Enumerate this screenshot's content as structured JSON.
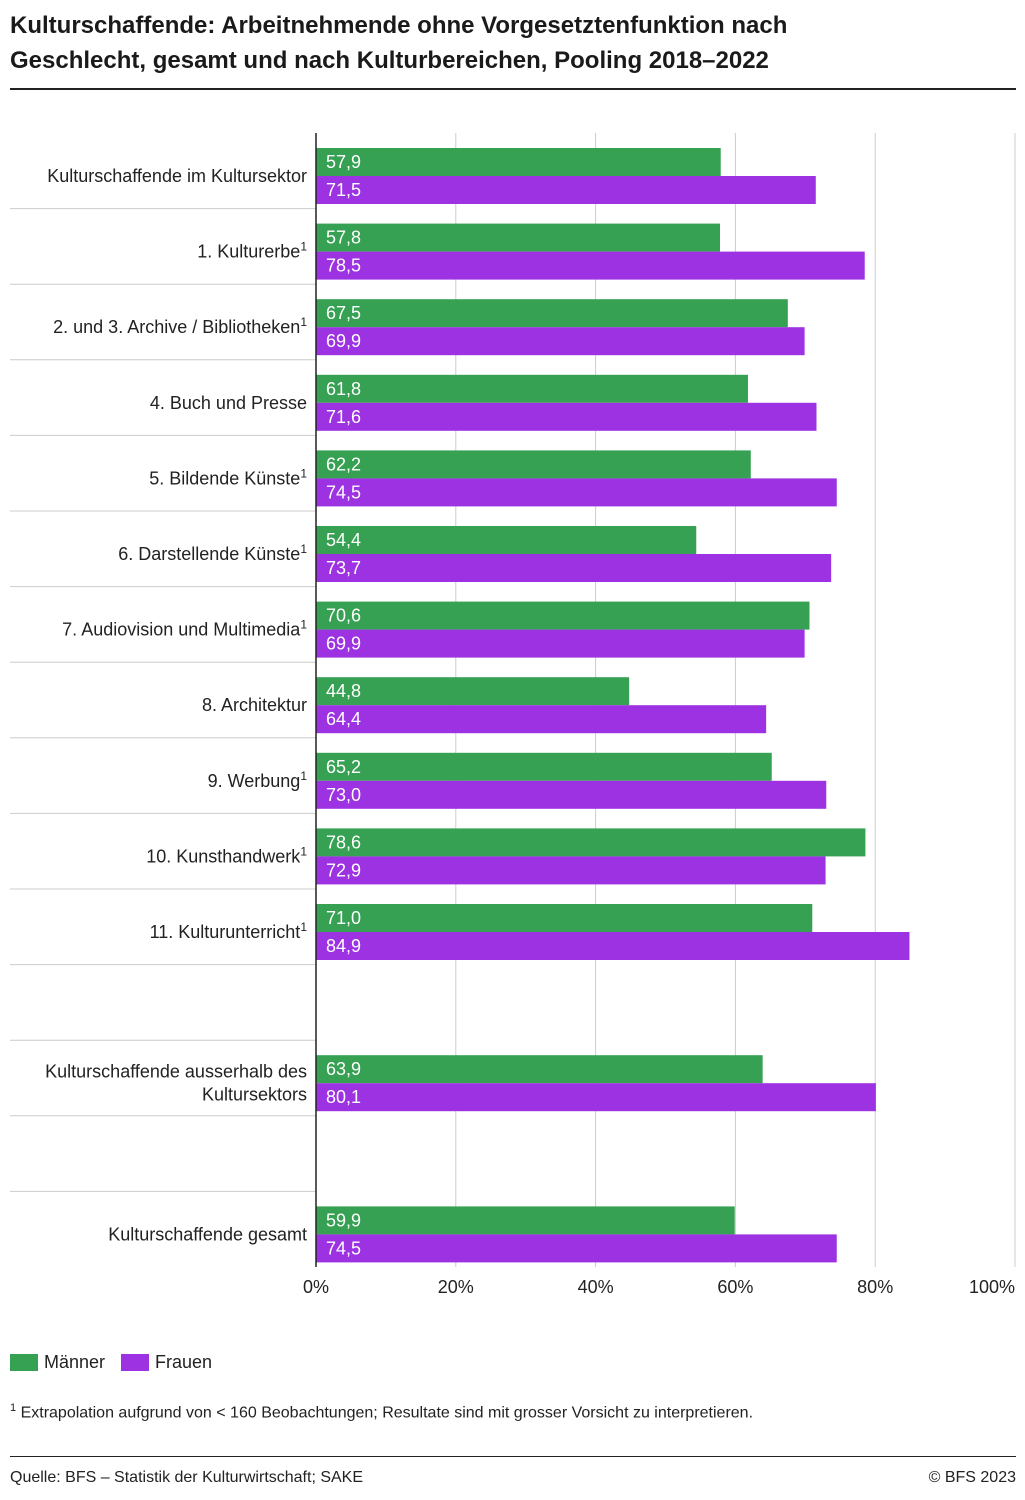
{
  "title_line1": "Kulturschaffende: Arbeitnehmende ohne Vorgesetztenfunktion nach",
  "title_line2": "Geschlecht, gesamt und nach Kulturbereichen, Pooling 2018–2022",
  "chart_data": {
    "type": "bar",
    "orientation": "horizontal",
    "xlim": [
      0,
      100
    ],
    "x_ticks": [
      "0%",
      "20%",
      "40%",
      "60%",
      "80%",
      "100%"
    ],
    "grid": true,
    "colors": {
      "maenner": "#36a152",
      "frauen": "#9c32e1"
    },
    "categories": [
      {
        "label": "Kulturschaffende im Kultursektor",
        "sup": "",
        "maenner": 57.9,
        "frauen": 71.5,
        "m_label": "57,9",
        "f_label": "71,5"
      },
      {
        "label": "1. Kulturerbe",
        "sup": "1",
        "maenner": 57.8,
        "frauen": 78.5,
        "m_label": "57,8",
        "f_label": "78,5"
      },
      {
        "label": "2. und 3. Archive / Bibliotheken",
        "sup": "1",
        "maenner": 67.5,
        "frauen": 69.9,
        "m_label": "67,5",
        "f_label": "69,9"
      },
      {
        "label": "4. Buch und Presse",
        "sup": "",
        "maenner": 61.8,
        "frauen": 71.6,
        "m_label": "61,8",
        "f_label": "71,6"
      },
      {
        "label": "5. Bildende Künste",
        "sup": "1",
        "maenner": 62.2,
        "frauen": 74.5,
        "m_label": "62,2",
        "f_label": "74,5"
      },
      {
        "label": "6. Darstellende Künste",
        "sup": "1",
        "maenner": 54.4,
        "frauen": 73.7,
        "m_label": "54,4",
        "f_label": "73,7"
      },
      {
        "label": "7. Audiovision und Multimedia",
        "sup": "1",
        "maenner": 70.6,
        "frauen": 69.9,
        "m_label": "70,6",
        "f_label": "69,9"
      },
      {
        "label": "8. Architektur",
        "sup": "",
        "maenner": 44.8,
        "frauen": 64.4,
        "m_label": "44,8",
        "f_label": "64,4"
      },
      {
        "label": "9. Werbung",
        "sup": "1",
        "maenner": 65.2,
        "frauen": 73.0,
        "m_label": "65,2",
        "f_label": "73,0"
      },
      {
        "label": "10. Kunsthandwerk",
        "sup": "1",
        "maenner": 78.6,
        "frauen": 72.9,
        "m_label": "78,6",
        "f_label": "72,9"
      },
      {
        "label": "11. Kulturunterricht",
        "sup": "1",
        "maenner": 71.0,
        "frauen": 84.9,
        "m_label": "71,0",
        "f_label": "84,9"
      },
      {
        "label": "",
        "sup": "",
        "maenner": null,
        "frauen": null,
        "m_label": "",
        "f_label": ""
      },
      {
        "label": "Kulturschaffende ausserhalb des\nKultursektors",
        "sup": "",
        "maenner": 63.9,
        "frauen": 80.1,
        "m_label": "63,9",
        "f_label": "80,1"
      },
      {
        "label": "",
        "sup": "",
        "maenner": null,
        "frauen": null,
        "m_label": "",
        "f_label": ""
      },
      {
        "label": "Kulturschaffende gesamt",
        "sup": "",
        "maenner": 59.9,
        "frauen": 74.5,
        "m_label": "59,9",
        "f_label": "74,5"
      }
    ],
    "legend": [
      {
        "name": "Männer",
        "color": "#36a152"
      },
      {
        "name": "Frauen",
        "color": "#9c32e1"
      }
    ]
  },
  "footnote_sup": "1",
  "footnote_text": "Extrapolation aufgrund von < 160 Beobachtungen; Resultate sind mit grosser Vorsicht zu interpretieren.",
  "source": "Quelle: BFS – Statistik der Kulturwirtschaft; SAKE",
  "copyright": "© BFS 2023"
}
